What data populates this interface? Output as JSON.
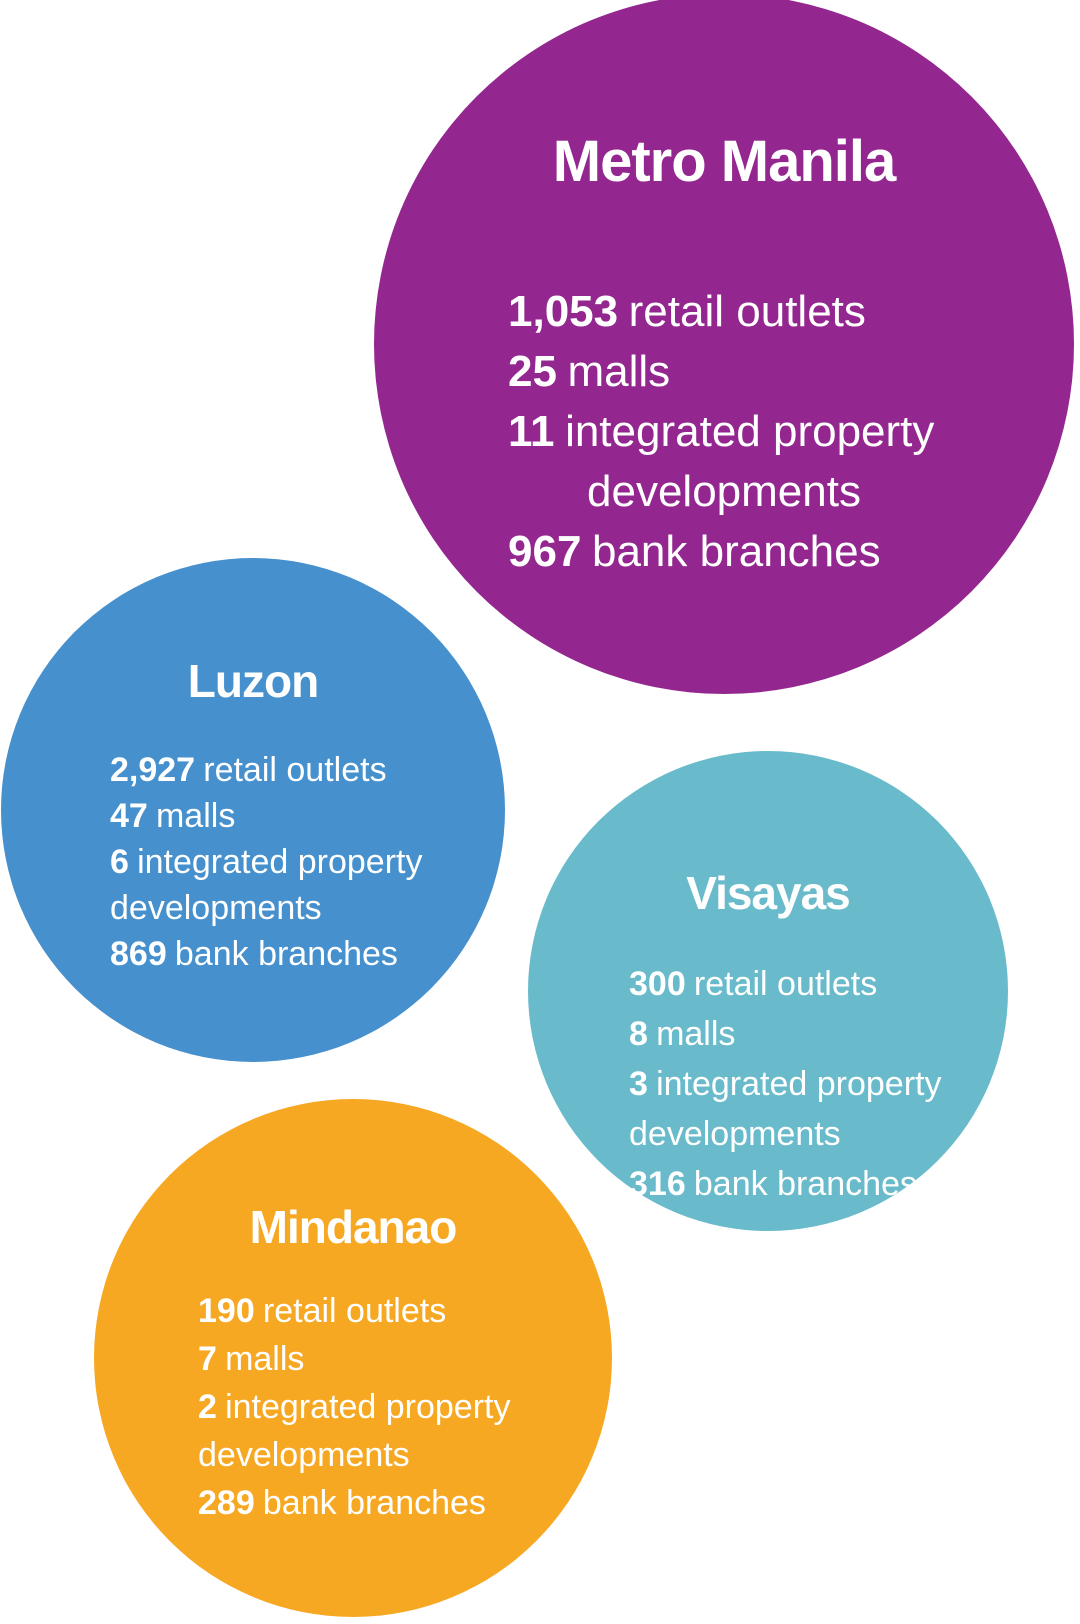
{
  "infographic": {
    "background": "#FFFFFF",
    "text_color": "#FFFFFF",
    "regions": [
      {
        "name": "Metro Manila",
        "color": "#93278F",
        "lines": [
          {
            "num": "1,053",
            "text": "retail outlets"
          },
          {
            "num": "25",
            "text": "malls"
          },
          {
            "num": "11",
            "text": "integrated property"
          },
          {
            "num": "",
            "text": "developments"
          },
          {
            "num": "967",
            "text": "bank branches"
          }
        ]
      },
      {
        "name": "Luzon",
        "color": "#4590CD",
        "lines": [
          {
            "num": "2,927",
            "text": "retail outlets"
          },
          {
            "num": "47",
            "text": "malls"
          },
          {
            "num": "6",
            "text": "integrated property"
          },
          {
            "num": "",
            "text": "developments"
          },
          {
            "num": "869",
            "text": "bank branches"
          }
        ]
      },
      {
        "name": "Visayas",
        "color": "#69BBCB",
        "lines": [
          {
            "num": "300",
            "text": "retail outlets"
          },
          {
            "num": "8",
            "text": "malls"
          },
          {
            "num": "3",
            "text": "integrated property"
          },
          {
            "num": "",
            "text": "developments"
          },
          {
            "num": "316",
            "text": "bank branches"
          }
        ]
      },
      {
        "name": "Mindanao",
        "color": "#F7A823",
        "lines": [
          {
            "num": "190",
            "text": "retail outlets"
          },
          {
            "num": "7",
            "text": "malls"
          },
          {
            "num": "2",
            "text": "integrated property"
          },
          {
            "num": "",
            "text": "developments"
          },
          {
            "num": "289",
            "text": "bank branches"
          }
        ]
      }
    ]
  },
  "chart_data": {
    "type": "table",
    "title": "Regional footprint: retail outlets, malls, integrated property developments, bank branches",
    "categories": [
      "Metro Manila",
      "Luzon",
      "Visayas",
      "Mindanao"
    ],
    "series": [
      {
        "name": "retail outlets",
        "values": [
          1053,
          2927,
          300,
          190
        ]
      },
      {
        "name": "malls",
        "values": [
          25,
          47,
          8,
          7
        ]
      },
      {
        "name": "integrated property developments",
        "values": [
          11,
          6,
          3,
          2
        ]
      },
      {
        "name": "bank branches",
        "values": [
          967,
          869,
          316,
          289
        ]
      }
    ],
    "legend_position": "none"
  }
}
